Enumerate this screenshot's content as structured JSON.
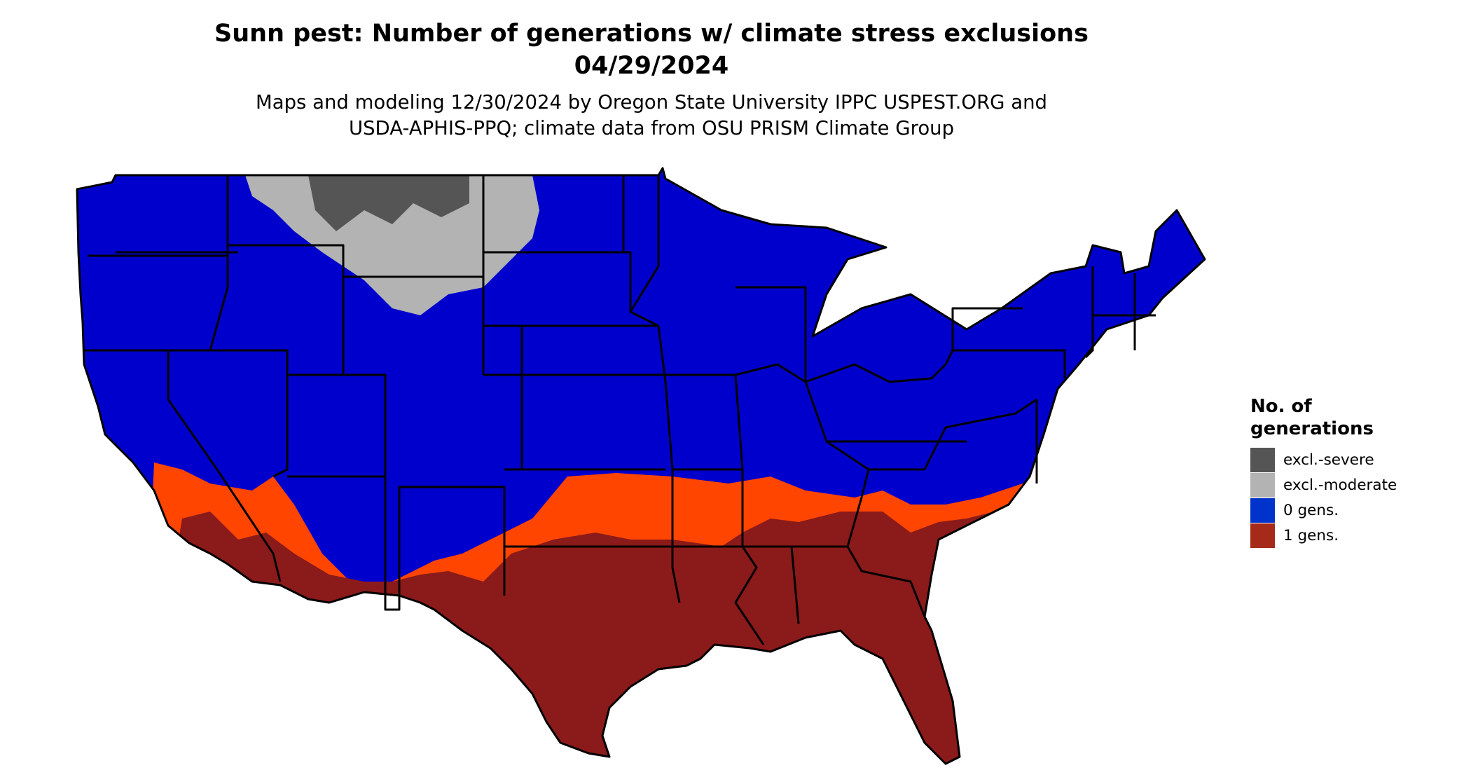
{
  "title": {
    "line1": "Sunn pest: Number of generations w/ climate stress exclusions",
    "line2": "04/29/2024"
  },
  "subtitle": {
    "line1": "Maps and modeling 12/30/2024 by Oregon State University IPPC USPEST.ORG and",
    "line2": "USDA-APHIS-PPQ; climate data from OSU PRISM Climate Group"
  },
  "legend": {
    "title_line1": "No. of",
    "title_line2": "generations",
    "items": [
      {
        "label": "excl.-severe",
        "color": "#555555"
      },
      {
        "label": "excl.-moderate",
        "color": "#b3b3b3"
      },
      {
        "label": "0 gens.",
        "color": "#0033cc"
      },
      {
        "label": "1 gens.",
        "color": "#a52a1a"
      }
    ]
  },
  "map": {
    "region": "Contiguous United States",
    "colors": {
      "zero_gens": "#0000cc",
      "one_gen": "#8b1a1a",
      "transition": "#ff4500",
      "excl_moderate": "#b3b3b3",
      "excl_severe": "#555555",
      "state_border": "#000000"
    }
  }
}
